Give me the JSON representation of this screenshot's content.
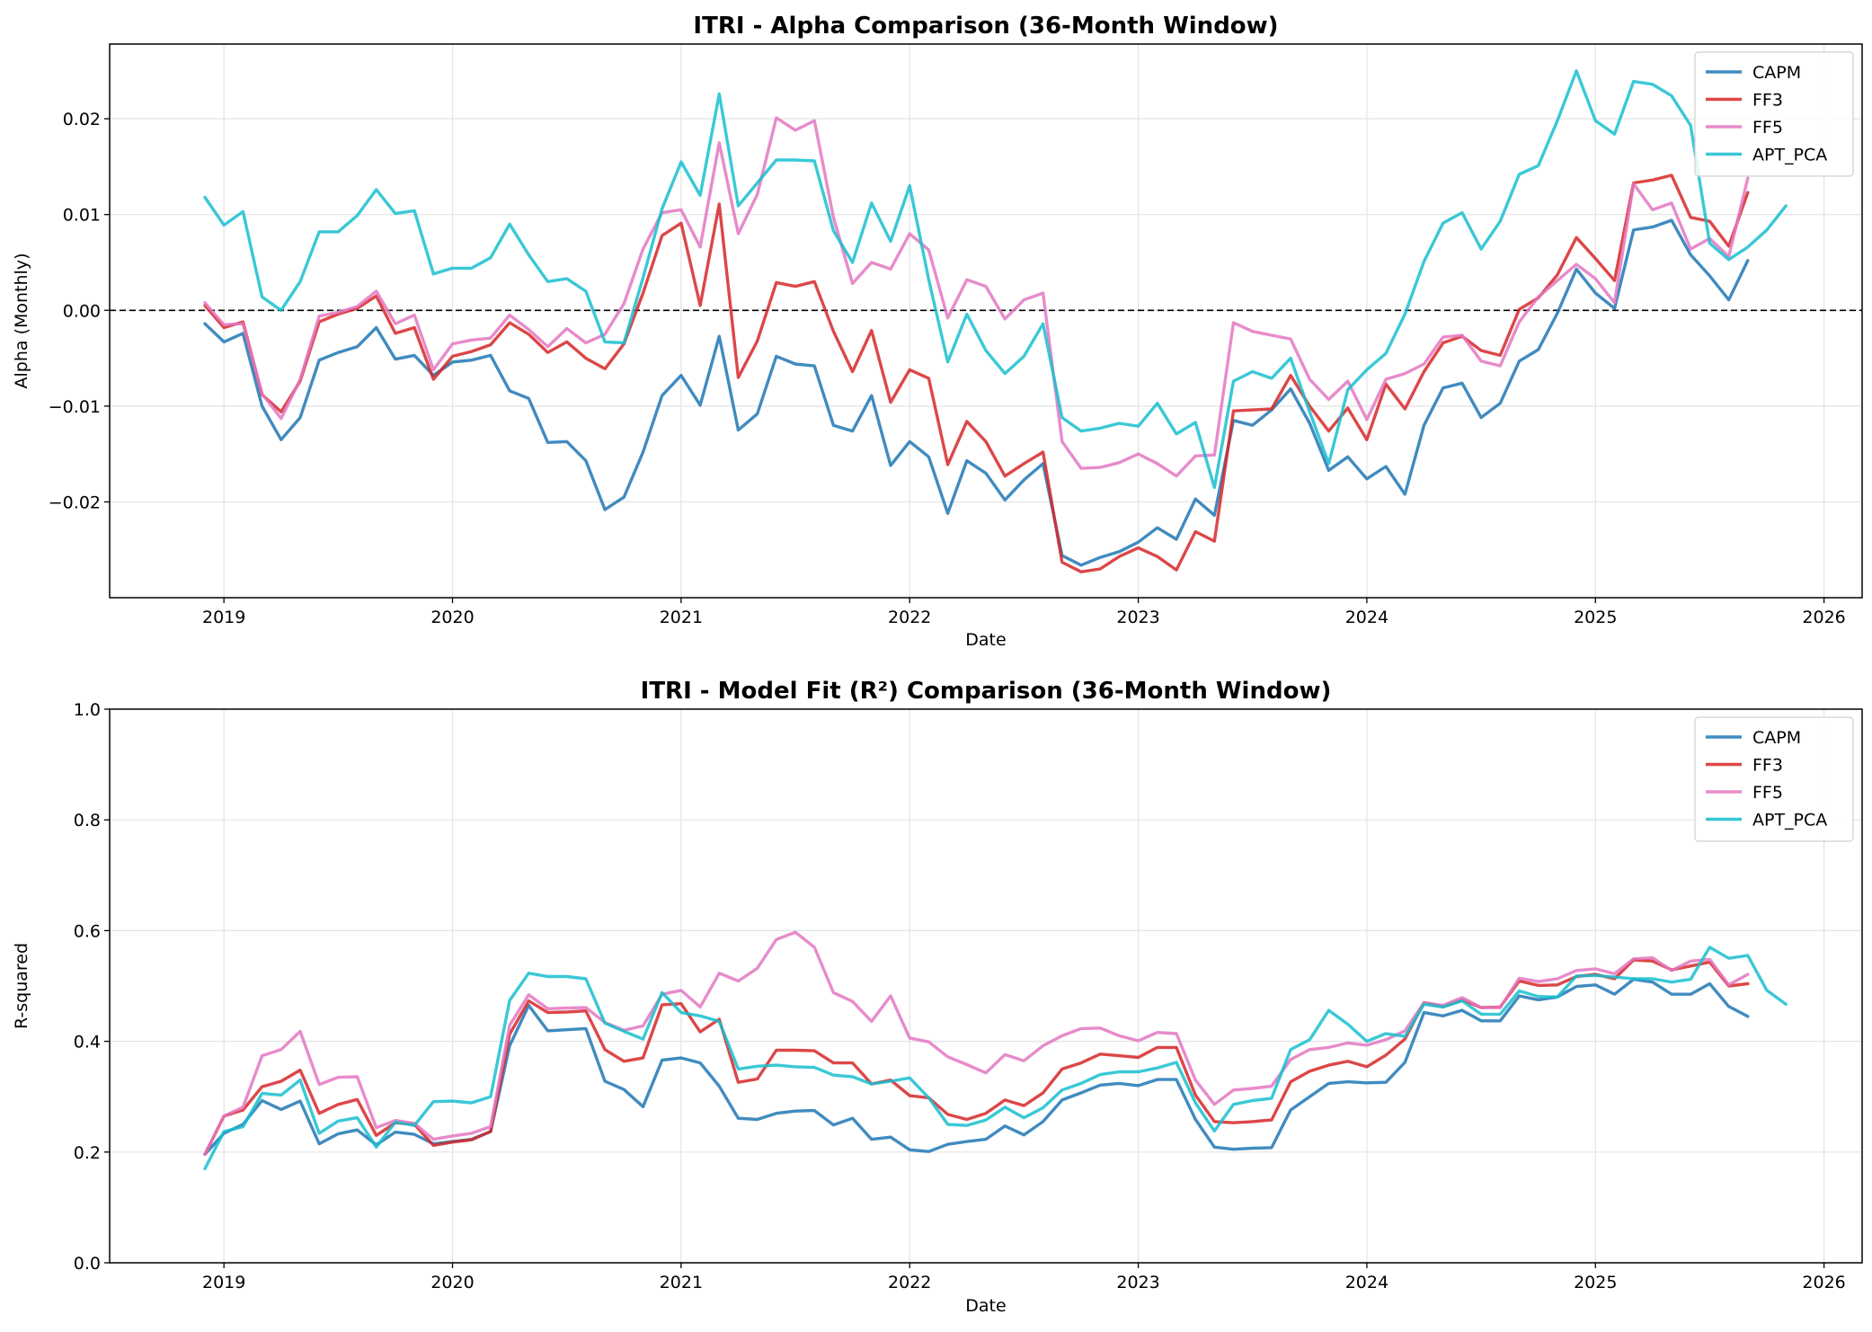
{
  "chart_data": [
    {
      "type": "line",
      "title": "ITRI - Alpha Comparison (36-Month Window)",
      "xlabel": "Date",
      "ylabel": "Alpha (Monthly)",
      "x_ticks": [
        "2019",
        "2020",
        "2021",
        "2022",
        "2023",
        "2024",
        "2025",
        "2026"
      ],
      "y_ticks": [
        "−0.02",
        "−0.01",
        "0.00",
        "0.01",
        "0.02"
      ],
      "xlim": [
        "2018-07",
        "2026-03"
      ],
      "ylim": [
        -0.03,
        0.0278
      ],
      "reference_line": 0,
      "grid": true,
      "legend_position": "upper right",
      "x_start": "2018-12",
      "series": [
        {
          "name": "CAPM",
          "color": "#1f77b4",
          "values": [
            -0.0014,
            -0.0033,
            -0.0024,
            -0.01,
            -0.0135,
            -0.0112,
            -0.0052,
            -0.0044,
            -0.0038,
            -0.0018,
            -0.0051,
            -0.0047,
            -0.0068,
            -0.0054,
            -0.0052,
            -0.0047,
            -0.0084,
            -0.0092,
            -0.0138,
            -0.0137,
            -0.0157,
            -0.0208,
            -0.0195,
            -0.0148,
            -0.0089,
            -0.0068,
            -0.0099,
            -0.0027,
            -0.0125,
            -0.0108,
            -0.0048,
            -0.0056,
            -0.0058,
            -0.012,
            -0.0126,
            -0.0089,
            -0.0162,
            -0.0137,
            -0.0153,
            -0.0212,
            -0.0157,
            -0.017,
            -0.0198,
            -0.0177,
            -0.016,
            -0.0256,
            -0.0266,
            -0.0258,
            -0.0252,
            -0.0242,
            -0.0227,
            -0.0239,
            -0.0197,
            -0.0214,
            -0.0115,
            -0.012,
            -0.0104,
            -0.0082,
            -0.0118,
            -0.0167,
            -0.0153,
            -0.0176,
            -0.0163,
            -0.0192,
            -0.012,
            -0.0081,
            -0.0076,
            -0.0112,
            -0.0097,
            -0.0053,
            -0.0041,
            -0.0003,
            0.0043,
            0.0018,
            0.0002,
            0.0084,
            0.0087,
            0.0094,
            0.0058,
            0.0036,
            0.0011,
            0.0052
          ]
        },
        {
          "name": "FF3",
          "color": "#d62728",
          "values": [
            0.0005,
            -0.0018,
            -0.0012,
            -0.0088,
            -0.0106,
            -0.0074,
            -0.0012,
            -0.0004,
            0.0002,
            0.0015,
            -0.0024,
            -0.0018,
            -0.0072,
            -0.0048,
            -0.0043,
            -0.0036,
            -0.0013,
            -0.0025,
            -0.0044,
            -0.0033,
            -0.005,
            -0.0061,
            -0.0035,
            0.0018,
            0.0078,
            0.0091,
            0.0005,
            0.0111,
            -0.007,
            -0.0032,
            0.0029,
            0.0025,
            0.003,
            -0.0022,
            -0.0064,
            -0.0021,
            -0.0096,
            -0.0062,
            -0.0071,
            -0.0161,
            -0.0116,
            -0.0137,
            -0.0173,
            -0.016,
            -0.0148,
            -0.0263,
            -0.0273,
            -0.027,
            -0.0257,
            -0.0248,
            -0.0257,
            -0.0271,
            -0.0231,
            -0.0241,
            -0.0105,
            -0.0104,
            -0.0103,
            -0.0068,
            -0.01,
            -0.0126,
            -0.0102,
            -0.0135,
            -0.0077,
            -0.0103,
            -0.0064,
            -0.0034,
            -0.0027,
            -0.0042,
            -0.0047,
            0.0001,
            0.0013,
            0.0037,
            0.0076,
            0.0054,
            0.0031,
            0.0133,
            0.0136,
            0.0141,
            0.0097,
            0.0093,
            0.0067,
            0.0123
          ]
        },
        {
          "name": "FF5",
          "color": "#e377c2",
          "values": [
            0.0008,
            -0.0015,
            -0.0014,
            -0.0087,
            -0.0113,
            -0.0072,
            -0.0006,
            -0.0002,
            0.0004,
            0.002,
            -0.0014,
            -0.0005,
            -0.0062,
            -0.0035,
            -0.0031,
            -0.0029,
            -0.0005,
            -0.002,
            -0.0038,
            -0.0019,
            -0.0034,
            -0.0025,
            0.0007,
            0.0064,
            0.0102,
            0.0105,
            0.0066,
            0.0175,
            0.008,
            0.0121,
            0.0201,
            0.0188,
            0.0198,
            0.0097,
            0.0028,
            0.005,
            0.0043,
            0.008,
            0.0063,
            -0.0008,
            0.0032,
            0.0025,
            -0.0009,
            0.0011,
            0.0018,
            -0.0137,
            -0.0165,
            -0.0164,
            -0.0159,
            -0.015,
            -0.016,
            -0.0173,
            -0.0152,
            -0.0151,
            -0.0013,
            -0.0022,
            -0.0026,
            -0.003,
            -0.0072,
            -0.0093,
            -0.0074,
            -0.0114,
            -0.0072,
            -0.0066,
            -0.0056,
            -0.0028,
            -0.0026,
            -0.0053,
            -0.0058,
            -0.0012,
            0.0014,
            0.0031,
            0.0048,
            0.0033,
            0.0008,
            0.0132,
            0.0105,
            0.0112,
            0.0064,
            0.0075,
            0.0056,
            0.0138
          ]
        },
        {
          "name": "APT_PCA",
          "color": "#17becf",
          "values": [
            0.0118,
            0.0089,
            0.0103,
            0.0014,
            0.0,
            0.003,
            0.0082,
            0.0082,
            0.0099,
            0.0126,
            0.0101,
            0.0104,
            0.0038,
            0.0044,
            0.0044,
            0.0055,
            0.009,
            0.0058,
            0.003,
            0.0033,
            0.002,
            -0.0033,
            -0.0034,
            0.0034,
            0.0106,
            0.0155,
            0.012,
            0.0226,
            0.0109,
            0.0133,
            0.0157,
            0.0157,
            0.0156,
            0.0083,
            0.005,
            0.0112,
            0.0072,
            0.013,
            0.0032,
            -0.0054,
            -0.0004,
            -0.0042,
            -0.0066,
            -0.0048,
            -0.0014,
            -0.0112,
            -0.0126,
            -0.0123,
            -0.0118,
            -0.0121,
            -0.0097,
            -0.0129,
            -0.0117,
            -0.0185,
            -0.0074,
            -0.0064,
            -0.0071,
            -0.005,
            -0.0106,
            -0.016,
            -0.0083,
            -0.0062,
            -0.0045,
            -0.0004,
            0.0051,
            0.0091,
            0.0102,
            0.0064,
            0.0093,
            0.0142,
            0.0151,
            0.0198,
            0.025,
            0.0198,
            0.0184,
            0.0239,
            0.0236,
            0.0224,
            0.0193,
            0.007,
            0.0053,
            0.0066,
            0.0084,
            0.0109
          ]
        }
      ]
    },
    {
      "type": "line",
      "title": "ITRI - Model Fit (R²) Comparison (36-Month Window)",
      "xlabel": "Date",
      "ylabel": "R-squared",
      "x_ticks": [
        "2019",
        "2020",
        "2021",
        "2022",
        "2023",
        "2024",
        "2025",
        "2026"
      ],
      "y_ticks": [
        "0.0",
        "0.2",
        "0.4",
        "0.6",
        "0.8",
        "1.0"
      ],
      "xlim": [
        "2018-07",
        "2026-03"
      ],
      "ylim": [
        0,
        1
      ],
      "grid": true,
      "legend_position": "upper right",
      "x_start": "2018-12",
      "series": [
        {
          "name": "CAPM",
          "color": "#1f77b4",
          "values": [
            0.196,
            0.234,
            0.25,
            0.293,
            0.277,
            0.292,
            0.215,
            0.233,
            0.24,
            0.213,
            0.236,
            0.232,
            0.215,
            0.219,
            0.223,
            0.237,
            0.392,
            0.465,
            0.419,
            0.421,
            0.423,
            0.328,
            0.313,
            0.282,
            0.366,
            0.37,
            0.361,
            0.319,
            0.261,
            0.259,
            0.27,
            0.274,
            0.275,
            0.249,
            0.261,
            0.223,
            0.227,
            0.204,
            0.201,
            0.214,
            0.219,
            0.223,
            0.247,
            0.231,
            0.255,
            0.294,
            0.307,
            0.321,
            0.324,
            0.32,
            0.331,
            0.331,
            0.259,
            0.209,
            0.205,
            0.207,
            0.208,
            0.276,
            0.3,
            0.324,
            0.327,
            0.325,
            0.326,
            0.362,
            0.452,
            0.446,
            0.456,
            0.437,
            0.437,
            0.482,
            0.475,
            0.48,
            0.499,
            0.502,
            0.485,
            0.512,
            0.507,
            0.485,
            0.485,
            0.504,
            0.463,
            0.445
          ]
        },
        {
          "name": "FF3",
          "color": "#d62728",
          "values": [
            0.196,
            0.265,
            0.276,
            0.318,
            0.328,
            0.348,
            0.27,
            0.286,
            0.295,
            0.23,
            0.253,
            0.25,
            0.212,
            0.218,
            0.222,
            0.237,
            0.413,
            0.473,
            0.452,
            0.453,
            0.455,
            0.385,
            0.364,
            0.37,
            0.466,
            0.468,
            0.417,
            0.44,
            0.326,
            0.332,
            0.384,
            0.384,
            0.383,
            0.361,
            0.361,
            0.323,
            0.33,
            0.302,
            0.298,
            0.268,
            0.259,
            0.27,
            0.294,
            0.284,
            0.307,
            0.35,
            0.361,
            0.377,
            0.374,
            0.371,
            0.389,
            0.389,
            0.303,
            0.255,
            0.253,
            0.255,
            0.258,
            0.327,
            0.346,
            0.357,
            0.364,
            0.354,
            0.375,
            0.404,
            0.47,
            0.463,
            0.475,
            0.461,
            0.462,
            0.509,
            0.501,
            0.502,
            0.517,
            0.521,
            0.513,
            0.547,
            0.545,
            0.529,
            0.536,
            0.543,
            0.5,
            0.504
          ]
        },
        {
          "name": "FF5",
          "color": "#e377c2",
          "values": [
            0.196,
            0.265,
            0.281,
            0.374,
            0.385,
            0.418,
            0.322,
            0.335,
            0.336,
            0.244,
            0.257,
            0.252,
            0.223,
            0.229,
            0.234,
            0.246,
            0.429,
            0.484,
            0.459,
            0.46,
            0.461,
            0.434,
            0.42,
            0.428,
            0.485,
            0.492,
            0.462,
            0.523,
            0.509,
            0.532,
            0.584,
            0.597,
            0.57,
            0.488,
            0.472,
            0.436,
            0.482,
            0.406,
            0.399,
            0.372,
            0.358,
            0.343,
            0.376,
            0.365,
            0.392,
            0.41,
            0.423,
            0.424,
            0.41,
            0.401,
            0.416,
            0.414,
            0.33,
            0.286,
            0.312,
            0.315,
            0.319,
            0.367,
            0.385,
            0.389,
            0.397,
            0.393,
            0.403,
            0.419,
            0.47,
            0.465,
            0.479,
            0.461,
            0.461,
            0.514,
            0.508,
            0.513,
            0.528,
            0.531,
            0.522,
            0.549,
            0.551,
            0.528,
            0.545,
            0.548,
            0.502,
            0.521
          ]
        },
        {
          "name": "APT_PCA",
          "color": "#17becf",
          "values": [
            0.17,
            0.237,
            0.246,
            0.306,
            0.303,
            0.33,
            0.234,
            0.256,
            0.262,
            0.209,
            0.254,
            0.248,
            0.291,
            0.292,
            0.289,
            0.3,
            0.474,
            0.523,
            0.517,
            0.517,
            0.513,
            0.433,
            0.418,
            0.404,
            0.488,
            0.452,
            0.446,
            0.436,
            0.35,
            0.355,
            0.357,
            0.354,
            0.353,
            0.339,
            0.336,
            0.323,
            0.328,
            0.334,
            0.298,
            0.25,
            0.248,
            0.258,
            0.281,
            0.262,
            0.28,
            0.312,
            0.324,
            0.34,
            0.345,
            0.345,
            0.352,
            0.362,
            0.289,
            0.238,
            0.286,
            0.293,
            0.297,
            0.385,
            0.403,
            0.456,
            0.431,
            0.4,
            0.414,
            0.409,
            0.467,
            0.462,
            0.473,
            0.449,
            0.449,
            0.491,
            0.481,
            0.48,
            0.518,
            0.519,
            0.516,
            0.513,
            0.513,
            0.507,
            0.512,
            0.57,
            0.55,
            0.555,
            0.492,
            0.467
          ]
        }
      ]
    }
  ]
}
